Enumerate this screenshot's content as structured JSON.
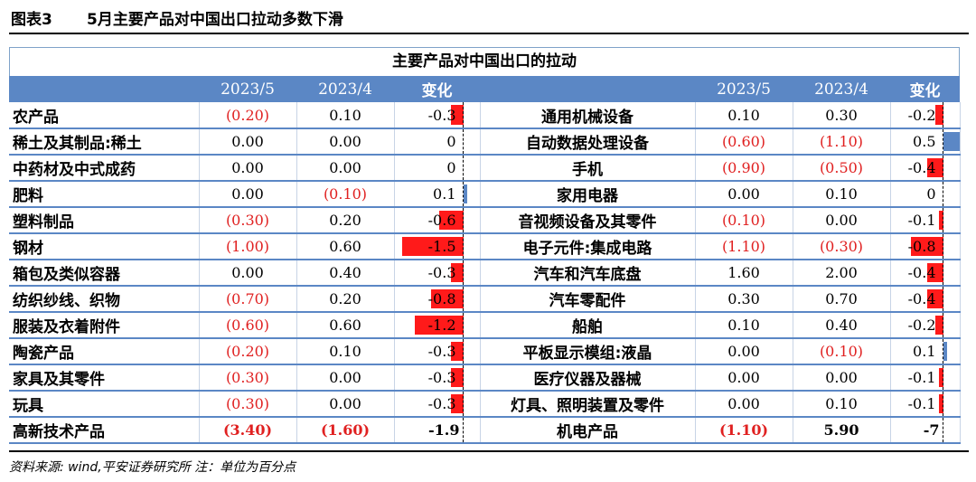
{
  "figure": {
    "number": "图表3",
    "title": "5月主要产品对中国出口拉动多数下滑"
  },
  "table": {
    "caption": "主要产品对中国出口的拉动",
    "headers": [
      "",
      "2023/5",
      "2023/4",
      "变化",
      "",
      "2023/5",
      "2023/4",
      "变化"
    ],
    "rows": [
      {
        "l_name": "农产品",
        "l_a": "(0.20)",
        "l_b": "0.10",
        "l_chg": "-0.3",
        "l_chg_val": -0.3,
        "r_name": "通用机械设备",
        "r_a": "0.10",
        "r_b": "0.30",
        "r_chg": "-0.2",
        "r_chg_val": -0.2
      },
      {
        "l_name": "稀土及其制品:稀土",
        "l_a": "0.00",
        "l_b": "0.00",
        "l_chg": "0",
        "l_chg_val": 0,
        "r_name": "自动数据处理设备",
        "r_a": "(0.60)",
        "r_b": "(1.10)",
        "r_chg": "0.5",
        "r_chg_val": 0.5
      },
      {
        "l_name": "中药材及中式成药",
        "l_a": "0.00",
        "l_b": "0.00",
        "l_chg": "0",
        "l_chg_val": 0,
        "r_name": "手机",
        "r_a": "(0.90)",
        "r_b": "(0.50)",
        "r_chg": "-0.4",
        "r_chg_val": -0.4
      },
      {
        "l_name": "肥料",
        "l_a": "0.00",
        "l_b": "(0.10)",
        "l_chg": "0.1",
        "l_chg_val": 0.1,
        "r_name": "家用电器",
        "r_a": "0.00",
        "r_b": "0.10",
        "r_chg": "0",
        "r_chg_val": 0
      },
      {
        "l_name": "塑料制品",
        "l_a": "(0.30)",
        "l_b": "0.20",
        "l_chg": "-0.6",
        "l_chg_val": -0.6,
        "r_name": "音视频设备及其零件",
        "r_a": "(0.10)",
        "r_b": "0.00",
        "r_chg": "-0.1",
        "r_chg_val": -0.1
      },
      {
        "l_name": "钢材",
        "l_a": "(1.00)",
        "l_b": "0.60",
        "l_chg": "-1.5",
        "l_chg_val": -1.5,
        "r_name": "电子元件:集成电路",
        "r_a": "(1.10)",
        "r_b": "(0.30)",
        "r_chg": "-0.8",
        "r_chg_val": -0.8
      },
      {
        "l_name": "箱包及类似容器",
        "l_a": "0.00",
        "l_b": "0.40",
        "l_chg": "-0.3",
        "l_chg_val": -0.3,
        "r_name": "汽车和汽车底盘",
        "r_a": "1.60",
        "r_b": "2.00",
        "r_chg": "-0.4",
        "r_chg_val": -0.4
      },
      {
        "l_name": "纺织纱线、织物",
        "l_a": "(0.70)",
        "l_b": "0.20",
        "l_chg": "-0.8",
        "l_chg_val": -0.8,
        "r_name": "汽车零配件",
        "r_a": "0.30",
        "r_b": "0.70",
        "r_chg": "-0.4",
        "r_chg_val": -0.4
      },
      {
        "l_name": "服装及衣着附件",
        "l_a": "(0.60)",
        "l_b": "0.60",
        "l_chg": "-1.2",
        "l_chg_val": -1.2,
        "r_name": "船舶",
        "r_a": "0.10",
        "r_b": "0.40",
        "r_chg": "-0.2",
        "r_chg_val": -0.2
      },
      {
        "l_name": "陶瓷产品",
        "l_a": "(0.20)",
        "l_b": "0.10",
        "l_chg": "-0.3",
        "l_chg_val": -0.3,
        "r_name": "平板显示模组:液晶",
        "r_a": "0.00",
        "r_b": "(0.10)",
        "r_chg": "0.1",
        "r_chg_val": 0.1
      },
      {
        "l_name": "家具及其零件",
        "l_a": "(0.30)",
        "l_b": "0.00",
        "l_chg": "-0.3",
        "l_chg_val": -0.3,
        "r_name": "医疗仪器及器械",
        "r_a": "0.00",
        "r_b": "0.00",
        "r_chg": "-0.1",
        "r_chg_val": -0.1
      },
      {
        "l_name": "玩具",
        "l_a": "(0.30)",
        "l_b": "0.00",
        "l_chg": "-0.3",
        "l_chg_val": -0.3,
        "r_name": "灯具、照明装置及零件",
        "r_a": "0.00",
        "r_b": "0.10",
        "r_chg": "-0.1",
        "r_chg_val": -0.1
      },
      {
        "l_name": "高新技术产品",
        "l_a": "(3.40)",
        "l_b": "(1.60)",
        "l_chg": "-1.9",
        "l_chg_val": -1.9,
        "r_name": "机电产品",
        "r_a": "(1.10)",
        "r_b": "5.90",
        "r_chg": "-7",
        "r_chg_val": -7
      }
    ]
  },
  "colors": {
    "header": "#5b87c5",
    "negative_text": "#e02020",
    "neg_bar": "#ff1a1a",
    "pos_bar": "#5b87c5"
  },
  "source": "资料来源: wind,平安证券研究所 注：单位为百分点"
}
